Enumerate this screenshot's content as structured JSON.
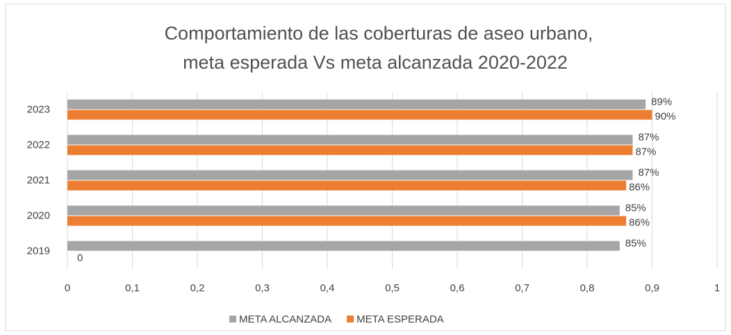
{
  "chart_data": {
    "type": "hbar",
    "title": [
      "Comportamiento de las coberturas de aseo urbano,",
      "meta esperada Vs meta alcanzada 2020-2022"
    ],
    "categories": [
      "2019",
      "2020",
      "2021",
      "2022",
      "2023"
    ],
    "series": [
      {
        "name": "META ALCANZADA",
        "color": "#a5a5a5",
        "values": [
          0.85,
          0.85,
          0.87,
          0.87,
          0.89
        ],
        "value_labels": [
          "85%",
          "85%",
          "87%",
          "87%",
          "89%"
        ]
      },
      {
        "name": "META ESPERADA",
        "color": "#ed7d31",
        "values": [
          0,
          0.86,
          0.86,
          0.87,
          0.9
        ],
        "value_labels": [
          "0",
          "86%",
          "86%",
          "87%",
          "90%"
        ]
      }
    ],
    "xlim": [
      0,
      1
    ],
    "xticks": [
      0,
      {
        "value": 0.1,
        "label": "0,1"
      },
      {
        "value": 0.2,
        "label": "0,2"
      },
      {
        "value": 0.3,
        "label": "0,3"
      },
      {
        "value": 0.4,
        "label": "0,4"
      },
      {
        "value": 0.5,
        "label": "0,5"
      },
      {
        "value": 0.6,
        "label": "0,6"
      },
      {
        "value": 0.7,
        "label": "0,7"
      },
      {
        "value": 0.8,
        "label": "0,8"
      },
      {
        "value": 0.9,
        "label": "0,9"
      },
      1
    ],
    "grid": true,
    "legend": "bottom"
  }
}
